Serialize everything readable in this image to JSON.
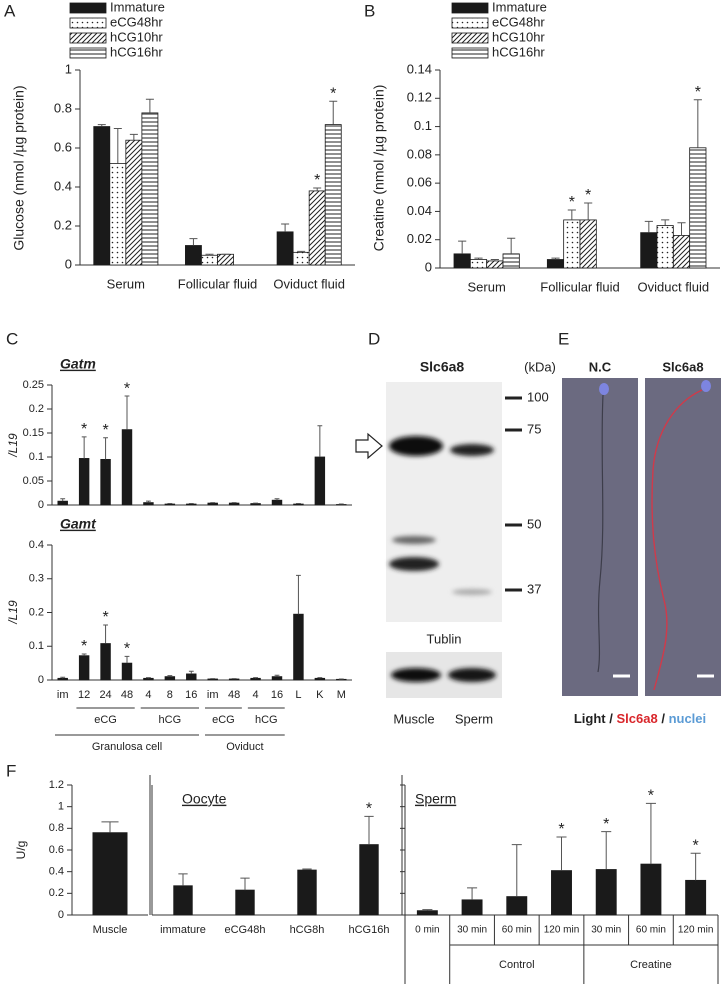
{
  "chart_data": [
    {
      "panel": "A",
      "type": "bar",
      "ylabel": "Glucose (nmol /µg protein)",
      "categories": [
        "Serum",
        "Follicular fluid",
        "Oviduct fluid"
      ],
      "ylim": [
        0,
        1
      ],
      "yticks": [
        0,
        0.2,
        0.4,
        0.6,
        0.8,
        1
      ],
      "legend": "top-left",
      "series": [
        {
          "name": "Immature",
          "color": "#1a1a1a",
          "pattern": "solid",
          "values": [
            0.71,
            0.1,
            0.17
          ],
          "errors": [
            0.01,
            0.035,
            0.04
          ],
          "sig": [
            null,
            null,
            null
          ]
        },
        {
          "name": "eCG48hr",
          "color": "#1a1a1a",
          "pattern": "dots",
          "values": [
            0.52,
            0.05,
            0.065
          ],
          "errors": [
            0.18,
            0.005,
            0.005
          ],
          "sig": [
            null,
            null,
            null
          ]
        },
        {
          "name": "hCG10hr",
          "color": "#1a1a1a",
          "pattern": "diagonal",
          "values": [
            0.64,
            0.055,
            0.38
          ],
          "errors": [
            0.03,
            0,
            0.015
          ],
          "sig": [
            null,
            null,
            "*"
          ]
        },
        {
          "name": "hCG16hr",
          "color": "#1a1a1a",
          "pattern": "horizontal",
          "values": [
            0.78,
            null,
            0.72
          ],
          "errors": [
            0.07,
            null,
            0.12
          ],
          "sig": [
            null,
            null,
            "*"
          ]
        }
      ]
    },
    {
      "panel": "B",
      "type": "bar",
      "ylabel": "Creatine (nmol /µg protein)",
      "categories": [
        "Serum",
        "Follicular fluid",
        "Oviduct fluid"
      ],
      "ylim": [
        0,
        0.14
      ],
      "yticks": [
        0,
        0.02,
        0.04,
        0.06,
        0.08,
        0.1,
        0.12,
        0.14
      ],
      "legend": "top-left",
      "series": [
        {
          "name": "Immature",
          "color": "#1a1a1a",
          "pattern": "solid",
          "values": [
            0.01,
            0.006,
            0.025
          ],
          "errors": [
            0.009,
            0.001,
            0.008
          ],
          "sig": [
            null,
            null,
            null
          ]
        },
        {
          "name": "eCG48hr",
          "color": "#1a1a1a",
          "pattern": "dots",
          "values": [
            0.006,
            0.034,
            0.03
          ],
          "errors": [
            0.001,
            0.007,
            0.004
          ],
          "sig": [
            null,
            "*",
            null
          ]
        },
        {
          "name": "hCG10hr",
          "color": "#1a1a1a",
          "pattern": "diagonal",
          "values": [
            0.005,
            0.034,
            0.023
          ],
          "errors": [
            0.001,
            0.012,
            0.009
          ],
          "sig": [
            null,
            "*",
            null
          ]
        },
        {
          "name": "hCG16hr",
          "color": "#1a1a1a",
          "pattern": "horizontal",
          "values": [
            0.01,
            null,
            0.085
          ],
          "errors": [
            0.011,
            null,
            0.034
          ],
          "sig": [
            null,
            null,
            "*"
          ]
        }
      ]
    },
    {
      "panel": "C",
      "type": "bar",
      "title": "Gatm",
      "ylabel": "/L19",
      "color": "#1a1a1a",
      "categories": [
        "im",
        "12",
        "24",
        "48",
        "4",
        "8",
        "16",
        "im",
        "48",
        "4",
        "16",
        "L",
        "K",
        "M"
      ],
      "values": [
        0.008,
        0.097,
        0.095,
        0.157,
        0.005,
        0.002,
        0.002,
        0.004,
        0.004,
        0.003,
        0.01,
        0.002,
        0.1,
        0.001
      ],
      "errors": [
        0.005,
        0.045,
        0.045,
        0.07,
        0.003,
        0.001,
        0.001,
        0.001,
        0.001,
        0.001,
        0.003,
        0.001,
        0.065,
        0.001
      ],
      "sig": [
        null,
        "*",
        "*",
        "*",
        null,
        null,
        null,
        null,
        null,
        null,
        null,
        null,
        null,
        null
      ],
      "ylim": [
        0,
        0.25
      ],
      "yticks": [
        0,
        0.05,
        0.1,
        0.15,
        0.2,
        0.25
      ]
    },
    {
      "type": "bar",
      "title": "Gamt",
      "ylabel": "/L19",
      "color": "#1a1a1a",
      "categories": [
        "im",
        "12",
        "24",
        "48",
        "4",
        "8",
        "16",
        "im",
        "48",
        "4",
        "16",
        "L",
        "K",
        "M"
      ],
      "values": [
        0.005,
        0.072,
        0.108,
        0.05,
        0.005,
        0.01,
        0.018,
        0.003,
        0.003,
        0.005,
        0.01,
        0.195,
        0.005,
        0.002
      ],
      "errors": [
        0.003,
        0.005,
        0.055,
        0.02,
        0.002,
        0.003,
        0.008,
        0.001,
        0.001,
        0.002,
        0.004,
        0.115,
        0.002,
        0.001
      ],
      "sig": [
        null,
        "*",
        "*",
        "*",
        null,
        null,
        null,
        null,
        null,
        null,
        null,
        null,
        null,
        null
      ],
      "groups": [
        "eCG",
        "hCG",
        "Granulosa cell",
        "eCG",
        "hCG",
        "Oviduct"
      ],
      "ylim": [
        0,
        0.4
      ],
      "yticks": [
        0,
        0.1,
        0.2,
        0.3,
        0.4
      ]
    },
    {
      "panel": "F",
      "type": "bar",
      "ylabel": "U/g",
      "color": "#1a1a1a",
      "categories": [
        "Muscle"
      ],
      "values": [
        0.76
      ],
      "errors": [
        0.1
      ],
      "sig": [
        null
      ],
      "ylim": [
        0,
        1.2
      ],
      "yticks": [
        0,
        0.2,
        0.4,
        0.6,
        0.8,
        1,
        1.2
      ]
    },
    {
      "type": "bar",
      "title": "Oocyte",
      "color": "#1a1a1a",
      "categories": [
        "immature",
        "eCG48h",
        "hCG8h",
        "hCG16h"
      ],
      "values": [
        0.27,
        0.23,
        0.415,
        0.65
      ],
      "errors": [
        0.11,
        0.11,
        0.01,
        0.26
      ],
      "sig": [
        null,
        null,
        null,
        "*"
      ],
      "ylim": [
        0,
        1.2
      ]
    },
    {
      "type": "bar",
      "title": "Sperm",
      "color": "#1a1a1a",
      "categories": [
        "0 min",
        "30 min",
        "60 min",
        "120 min",
        "30 min",
        "60 min",
        "120 min"
      ],
      "values": [
        0.04,
        0.14,
        0.17,
        0.41,
        0.42,
        0.47,
        0.32
      ],
      "errors": [
        0.01,
        0.11,
        0.48,
        0.31,
        0.35,
        0.56,
        0.25
      ],
      "sig": [
        null,
        null,
        null,
        "*",
        "*",
        "*",
        "*"
      ],
      "groups": [
        "Control",
        "Creatine"
      ],
      "ylim": [
        0,
        1.2
      ],
      "yticks": [
        0,
        0.2,
        0.4,
        0.6,
        0.8,
        1,
        1.2
      ]
    }
  ],
  "blot": {
    "panel": "D",
    "title": "Slc6a8",
    "unit": "(kDa)",
    "markers": [
      "100",
      "75",
      "50",
      "37"
    ],
    "loading": "Tublin",
    "lanes": [
      "Muscle",
      "Sperm"
    ]
  },
  "micrograph": {
    "panel": "E",
    "images": [
      {
        "label": "N.C",
        "color": "#222222"
      },
      {
        "label": "Slc6a8",
        "color": "#d9262b"
      }
    ],
    "caption": [
      {
        "text": "Light",
        "color": "#222222"
      },
      {
        "text": "/",
        "color": "#222222"
      },
      {
        "text": "Slc6a8",
        "color": "#d9262b"
      },
      {
        "text": "/",
        "color": "#222222"
      },
      {
        "text": "nuclei",
        "color": "#5b9bd5"
      }
    ]
  }
}
